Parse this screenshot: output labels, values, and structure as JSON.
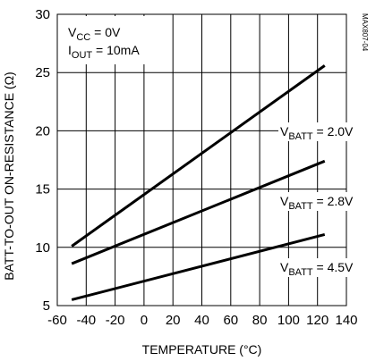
{
  "chart_data": {
    "type": "line",
    "xlabel": "TEMPERATURE (°C)",
    "ylabel": "BATT-TO-OUT ON-RESISTANCE (Ω)",
    "xlim": [
      -60,
      140
    ],
    "ylim": [
      5,
      30
    ],
    "x_ticks": [
      -60,
      -40,
      -20,
      0,
      20,
      40,
      60,
      80,
      100,
      120,
      140
    ],
    "y_ticks": [
      5,
      10,
      15,
      20,
      25,
      30
    ],
    "grid": true,
    "series": [
      {
        "name": "VBATT = 2.0V",
        "x": [
          -50,
          125
        ],
        "values": [
          10.1,
          25.6
        ]
      },
      {
        "name": "VBATT = 2.8V",
        "x": [
          -50,
          125
        ],
        "values": [
          8.6,
          17.4
        ]
      },
      {
        "name": "VBATT = 4.5V",
        "x": [
          -50,
          125
        ],
        "values": [
          5.5,
          11.1
        ]
      }
    ],
    "conditions": [
      {
        "base": "V",
        "sub": "CC",
        "rest": " = 0V"
      },
      {
        "base": "I",
        "sub": "OUT",
        "rest": " = 10mA"
      }
    ],
    "line_labels": [
      {
        "base": "V",
        "sub": "BATT",
        "rest": " = 2.0V"
      },
      {
        "base": "V",
        "sub": "BATT",
        "rest": " = 2.8V"
      },
      {
        "base": "V",
        "sub": "BATT",
        "rest": " = 4.5V"
      }
    ],
    "figure_id": "MAX807-04",
    "colors": {
      "line": "#000000",
      "grid": "#000000",
      "background": "#ffffff"
    }
  }
}
